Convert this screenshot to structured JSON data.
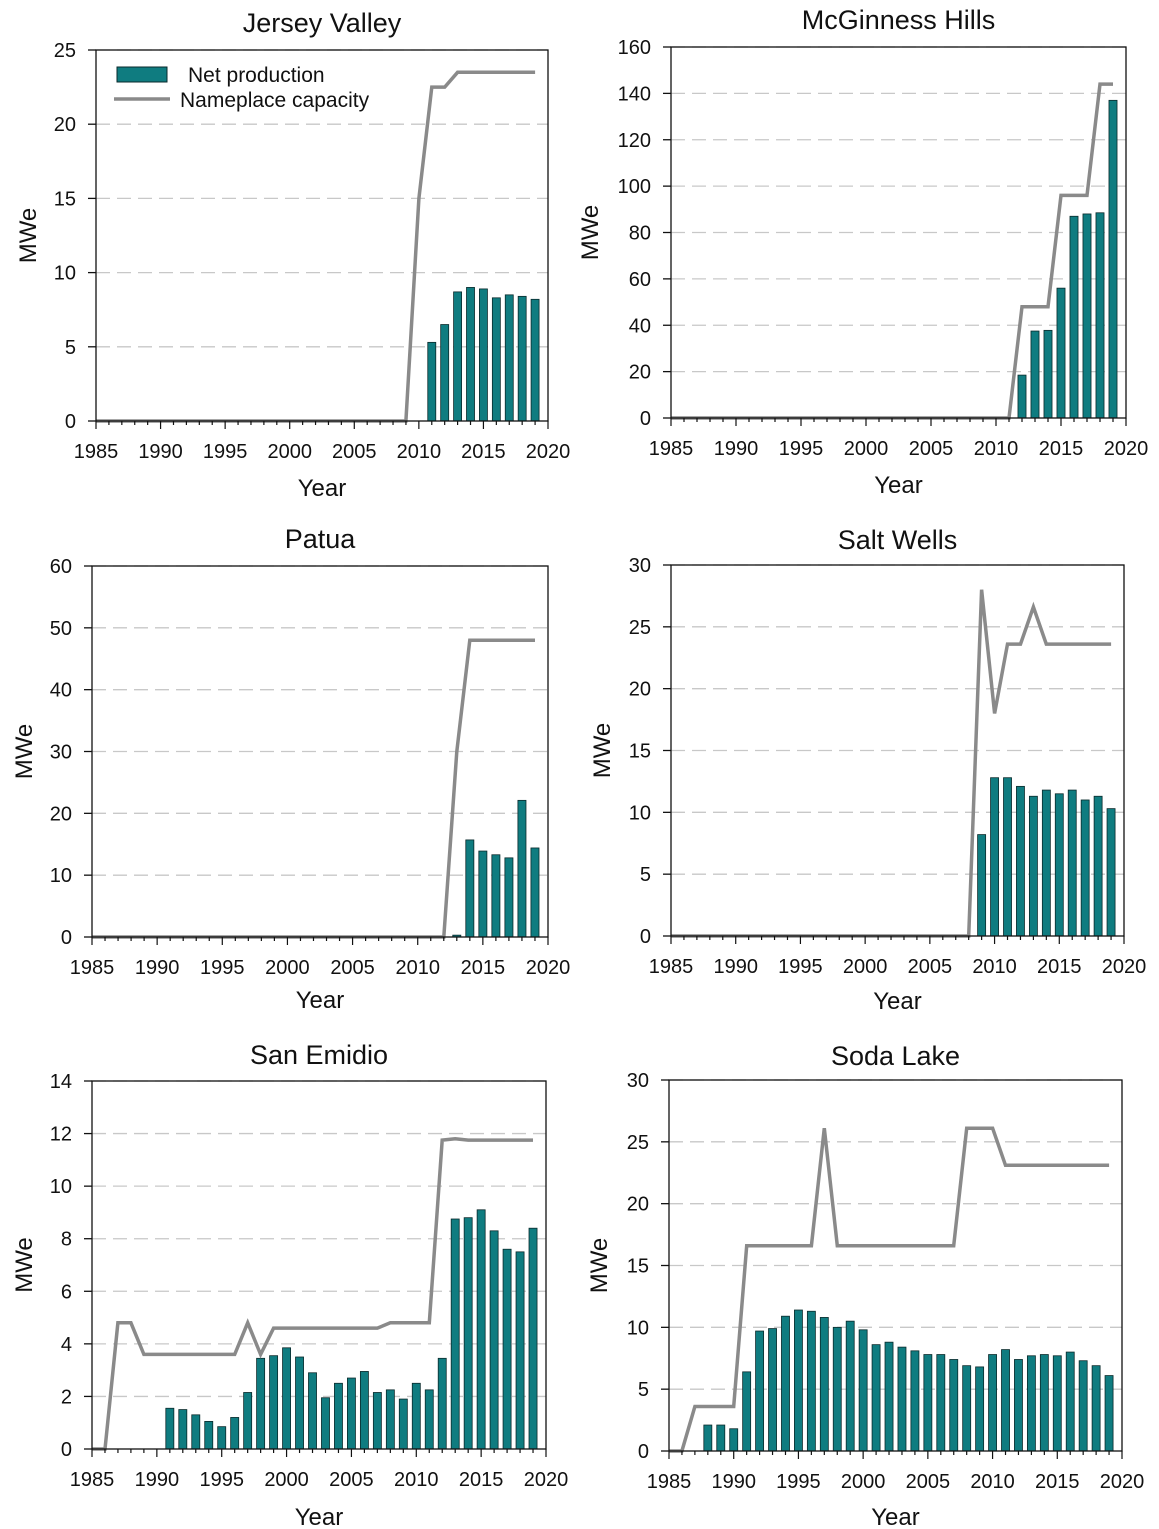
{
  "colors": {
    "bar": "#0f7c80",
    "bar_stroke": "#0a2a2b",
    "line": "#8a8a8a",
    "grid": "#c8c8c8",
    "axis": "#111111"
  },
  "legend": {
    "bar_label": "Net production",
    "line_label": "Nameplace capacity"
  },
  "chart_data": [
    {
      "type": "bar",
      "title": "Jersey Valley",
      "xlabel": "Year",
      "ylabel": "MWe",
      "xlim": [
        1985,
        2020
      ],
      "ylim": [
        0,
        25
      ],
      "xticks": [
        1985,
        1990,
        1995,
        2000,
        2005,
        2010,
        2015,
        2020
      ],
      "yticks": [
        0,
        5,
        10,
        15,
        20,
        25
      ],
      "grid": true,
      "legend": "top-left",
      "bars": {
        "x": [
          2011,
          2012,
          2013,
          2014,
          2015,
          2016,
          2017,
          2018,
          2019
        ],
        "values": [
          5.3,
          6.5,
          8.7,
          9.0,
          8.9,
          8.3,
          8.5,
          8.4,
          8.2
        ]
      },
      "line": {
        "x": [
          1985,
          2009,
          2010,
          2011,
          2012,
          2013,
          2014,
          2015,
          2016,
          2017,
          2018,
          2019
        ],
        "values": [
          0,
          0,
          15.0,
          22.5,
          22.5,
          23.5,
          23.5,
          23.5,
          23.5,
          23.5,
          23.5,
          23.5
        ]
      }
    },
    {
      "type": "bar",
      "title": "McGinness Hills",
      "xlabel": "Year",
      "ylabel": "MWe",
      "xlim": [
        1985,
        2020
      ],
      "ylim": [
        0,
        160
      ],
      "xticks": [
        1985,
        1990,
        1995,
        2000,
        2005,
        2010,
        2015,
        2020
      ],
      "yticks": [
        0,
        20,
        40,
        60,
        80,
        100,
        120,
        140,
        160
      ],
      "grid": true,
      "bars": {
        "x": [
          2012,
          2013,
          2014,
          2015,
          2016,
          2017,
          2018,
          2019
        ],
        "values": [
          18.5,
          37.5,
          37.8,
          56,
          87,
          88,
          88.5,
          137
        ]
      },
      "line": {
        "x": [
          1985,
          2011,
          2012,
          2013,
          2014,
          2015,
          2016,
          2017,
          2018,
          2019
        ],
        "values": [
          0,
          0,
          48,
          48,
          48,
          96,
          96,
          96,
          144,
          144
        ]
      }
    },
    {
      "type": "bar",
      "title": "Patua",
      "xlabel": "Year",
      "ylabel": "MWe",
      "xlim": [
        1985,
        2020
      ],
      "ylim": [
        0,
        60
      ],
      "xticks": [
        1985,
        1990,
        1995,
        2000,
        2005,
        2010,
        2015,
        2020
      ],
      "yticks": [
        0,
        10,
        20,
        30,
        40,
        50,
        60
      ],
      "grid": true,
      "bars": {
        "x": [
          2013,
          2014,
          2015,
          2016,
          2017,
          2018,
          2019
        ],
        "values": [
          0.3,
          15.7,
          13.9,
          13.3,
          12.8,
          22.1,
          14.4
        ]
      },
      "line": {
        "x": [
          1985,
          2012,
          2013,
          2014,
          2015,
          2016,
          2017,
          2018,
          2019
        ],
        "values": [
          0,
          0,
          30,
          48,
          48,
          48,
          48,
          48,
          48
        ]
      }
    },
    {
      "type": "bar",
      "title": "Salt Wells",
      "xlabel": "Year",
      "ylabel": "MWe",
      "xlim": [
        1985,
        2020
      ],
      "ylim": [
        0,
        30
      ],
      "xticks": [
        1985,
        1990,
        1995,
        2000,
        2005,
        2010,
        2015,
        2020
      ],
      "yticks": [
        0,
        5,
        10,
        15,
        20,
        25,
        30
      ],
      "grid": true,
      "bars": {
        "x": [
          2009,
          2010,
          2011,
          2012,
          2013,
          2014,
          2015,
          2016,
          2017,
          2018,
          2019
        ],
        "values": [
          8.2,
          12.8,
          12.8,
          12.1,
          11.3,
          11.8,
          11.5,
          11.8,
          11.0,
          11.3,
          10.3
        ]
      },
      "line": {
        "x": [
          1985,
          2008,
          2009,
          2010,
          2011,
          2012,
          2013,
          2014,
          2015,
          2016,
          2017,
          2018,
          2019
        ],
        "values": [
          0,
          0,
          28,
          18,
          23.6,
          23.6,
          26.6,
          23.6,
          23.6,
          23.6,
          23.6,
          23.6,
          23.6
        ]
      }
    },
    {
      "type": "bar",
      "title": "San Emidio",
      "xlabel": "Year",
      "ylabel": "MWe",
      "xlim": [
        1985,
        2020
      ],
      "ylim": [
        0,
        14
      ],
      "xticks": [
        1985,
        1990,
        1995,
        2000,
        2005,
        2010,
        2015,
        2020
      ],
      "yticks": [
        0,
        2,
        4,
        6,
        8,
        10,
        12,
        14
      ],
      "grid": true,
      "bars": {
        "x": [
          1991,
          1992,
          1993,
          1994,
          1995,
          1996,
          1997,
          1998,
          1999,
          2000,
          2001,
          2002,
          2003,
          2004,
          2005,
          2006,
          2007,
          2008,
          2009,
          2010,
          2011,
          2012,
          2013,
          2014,
          2015,
          2016,
          2017,
          2018,
          2019
        ],
        "values": [
          1.55,
          1.5,
          1.3,
          1.05,
          0.85,
          1.2,
          2.15,
          3.45,
          3.55,
          3.85,
          3.5,
          2.9,
          1.95,
          2.5,
          2.7,
          2.95,
          2.15,
          2.25,
          1.9,
          2.5,
          2.25,
          3.45,
          8.75,
          8.8,
          9.1,
          8.3,
          7.6,
          7.5,
          8.4
        ]
      },
      "line": {
        "x": [
          1985,
          1986,
          1987,
          1988,
          1989,
          1990,
          1991,
          1992,
          1993,
          1994,
          1995,
          1996,
          1997,
          1998,
          1999,
          2000,
          2001,
          2002,
          2003,
          2004,
          2005,
          2006,
          2007,
          2008,
          2009,
          2010,
          2011,
          2012,
          2013,
          2014,
          2015,
          2016,
          2017,
          2018,
          2019
        ],
        "values": [
          0,
          0,
          4.8,
          4.8,
          3.6,
          3.6,
          3.6,
          3.6,
          3.6,
          3.6,
          3.6,
          3.6,
          4.8,
          3.6,
          4.6,
          4.6,
          4.6,
          4.6,
          4.6,
          4.6,
          4.6,
          4.6,
          4.6,
          4.8,
          4.8,
          4.8,
          4.8,
          11.75,
          11.8,
          11.75,
          11.75,
          11.75,
          11.75,
          11.75,
          11.75
        ]
      }
    },
    {
      "type": "bar",
      "title": "Soda Lake",
      "xlabel": "Year",
      "ylabel": "MWe",
      "xlim": [
        1985,
        2020
      ],
      "ylim": [
        0,
        30
      ],
      "xticks": [
        1985,
        1990,
        1995,
        2000,
        2005,
        2010,
        2015,
        2020
      ],
      "yticks": [
        0,
        5,
        10,
        15,
        20,
        25,
        30
      ],
      "grid": true,
      "bars": {
        "x": [
          1988,
          1989,
          1990,
          1991,
          1992,
          1993,
          1994,
          1995,
          1996,
          1997,
          1998,
          1999,
          2000,
          2001,
          2002,
          2003,
          2004,
          2005,
          2006,
          2007,
          2008,
          2009,
          2010,
          2011,
          2012,
          2013,
          2014,
          2015,
          2016,
          2017,
          2018,
          2019
        ],
        "values": [
          2.1,
          2.1,
          1.8,
          6.4,
          9.7,
          9.9,
          10.9,
          11.4,
          11.3,
          10.8,
          10.0,
          10.5,
          9.8,
          8.6,
          8.8,
          8.4,
          8.1,
          7.8,
          7.8,
          7.4,
          6.9,
          6.8,
          7.8,
          8.2,
          7.4,
          7.7,
          7.8,
          7.7,
          8.0,
          7.3,
          6.9,
          6.1
        ]
      },
      "line": {
        "x": [
          1985,
          1986,
          1987,
          1988,
          1989,
          1990,
          1991,
          1992,
          1993,
          1994,
          1995,
          1996,
          1997,
          1998,
          1999,
          2000,
          2001,
          2002,
          2003,
          2004,
          2005,
          2006,
          2007,
          2008,
          2009,
          2010,
          2011,
          2012,
          2013,
          2014,
          2015,
          2016,
          2017,
          2018,
          2019
        ],
        "values": [
          0,
          0,
          3.6,
          3.6,
          3.6,
          3.6,
          16.6,
          16.6,
          16.6,
          16.6,
          16.6,
          16.6,
          26.1,
          16.6,
          16.6,
          16.6,
          16.6,
          16.6,
          16.6,
          16.6,
          16.6,
          16.6,
          16.6,
          26.1,
          26.1,
          26.1,
          23.1,
          23.1,
          23.1,
          23.1,
          23.1,
          23.1,
          23.1,
          23.1,
          23.1
        ]
      }
    }
  ]
}
